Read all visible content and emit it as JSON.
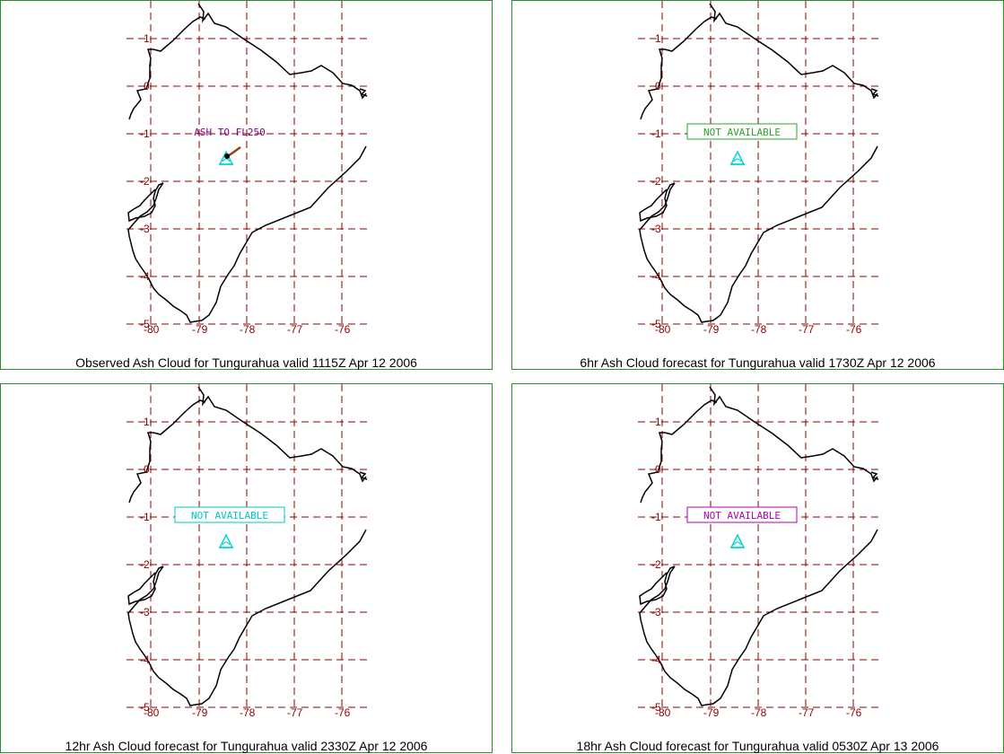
{
  "colors": {
    "grid": "#8b0000",
    "coast": "#000000",
    "volcano": "#00d5d5",
    "panel_border": "#2e8b2e"
  },
  "panels": [
    {
      "caption": "Observed Ash Cloud for Tungurahua valid 1115Z Apr 12 2006",
      "annotation": "ASH TO FL250",
      "annotation_color": "#800080",
      "annotation_boxed": false,
      "ash_plume": true
    },
    {
      "caption": "6hr Ash Cloud forecast for Tungurahua valid 1730Z Apr 12 2006",
      "annotation": "NOT AVAILABLE",
      "annotation_color": "#2ea02e",
      "annotation_boxed": true,
      "ash_plume": false
    },
    {
      "caption": "12hr Ash Cloud forecast for Tungurahua valid 2330Z Apr 12 2006",
      "annotation": "NOT AVAILABLE",
      "annotation_color": "#00c8c8",
      "annotation_boxed": true,
      "ash_plume": false
    },
    {
      "caption": "18hr Ash Cloud forecast for Tungurahua valid 0530Z Apr 13 2006",
      "annotation": "NOT AVAILABLE",
      "annotation_color": "#b000b0",
      "annotation_boxed": true,
      "ash_plume": false
    }
  ],
  "axes": {
    "lon_ticks": [
      "-80",
      "-79",
      "-78",
      "-77",
      "-76"
    ],
    "lat_ticks": [
      "1",
      "0",
      "-1",
      "-2",
      "-3",
      "-4",
      "-5"
    ]
  }
}
